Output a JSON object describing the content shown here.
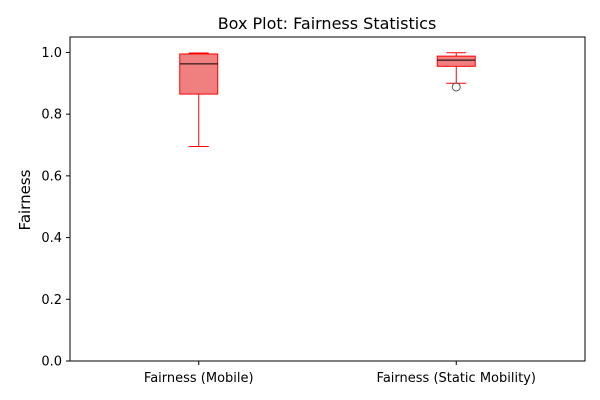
{
  "chart_data": {
    "type": "box",
    "title": "Box Plot: Fairness Statistics",
    "xlabel": "",
    "ylabel": "Fairness",
    "ylim": [
      0,
      1.05
    ],
    "yticks": [
      0.0,
      0.2,
      0.4,
      0.6,
      0.8,
      1.0
    ],
    "ytick_labels": [
      "0.0",
      "0.2",
      "0.4",
      "0.6",
      "0.8",
      "1.0"
    ],
    "grid": false,
    "categories": [
      "Fairness (Mobile)",
      "Fairness (Static Mobility)"
    ],
    "boxes": [
      {
        "category": "Fairness (Mobile)",
        "whisker_low": 0.695,
        "q1": 0.865,
        "median": 0.963,
        "q3": 0.995,
        "whisker_high": 0.998,
        "outliers": []
      },
      {
        "category": "Fairness (Static Mobility)",
        "whisker_low": 0.9,
        "q1": 0.955,
        "median": 0.975,
        "q3": 0.988,
        "whisker_high": 0.999,
        "outliers": [
          0.888
        ]
      }
    ],
    "colors": {
      "box_fill": "#f08080",
      "box_edge": "#ff0000",
      "median": "#000000",
      "outlier_edge": "#555555"
    }
  }
}
